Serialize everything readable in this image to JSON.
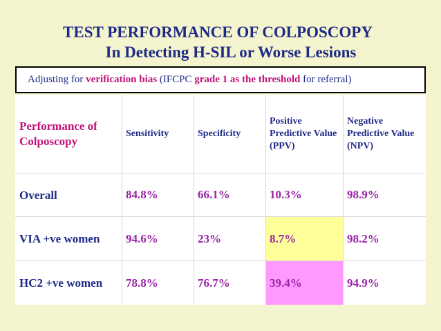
{
  "title": {
    "line1": "TEST PERFORMANCE OF COLPOSCOPY",
    "line2": "In Detecting H-SIL or Worse Lesions"
  },
  "note": {
    "part1": "Adjusting for ",
    "highlight1": "verification bias",
    "part2": " (IFCPC ",
    "highlight2": "grade 1 as the threshold",
    "part3": " for referral)"
  },
  "table": {
    "headers": [
      "Performance of Colposcopy",
      "Sensitivity",
      "Specificity",
      "Positive Predictive Value (PPV)",
      "Negative Predictive Value (NPV)"
    ],
    "rows": [
      {
        "label": "Overall",
        "values": [
          "84.8%",
          "66.1%",
          "10.3%",
          "98.9%"
        ]
      },
      {
        "label": "VIA +ve women",
        "values": [
          "94.6%",
          "23%",
          "8.7%",
          "98.2%"
        ]
      },
      {
        "label": "HC2 +ve women",
        "values": [
          "78.8%",
          "76.7%",
          "39.4%",
          "94.9%"
        ]
      }
    ]
  },
  "colors": {
    "background": "#f4f5cf",
    "title": "#1f2a86",
    "accent": "#c1127a",
    "value": "#9a22a8",
    "highlight_yellow": "#ffff99",
    "highlight_pink": "#ff99ff"
  }
}
